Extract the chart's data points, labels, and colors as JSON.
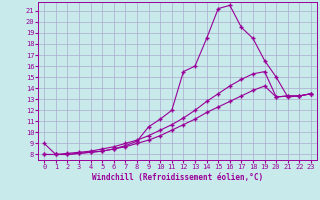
{
  "xlabel": "Windchill (Refroidissement éolien,°C)",
  "bg_color": "#c8eaea",
  "grid_color": "#aaaacc",
  "line_color": "#990099",
  "xlim": [
    -0.5,
    23.5
  ],
  "ylim": [
    7.5,
    21.8
  ],
  "xticks": [
    0,
    1,
    2,
    3,
    4,
    5,
    6,
    7,
    8,
    9,
    10,
    11,
    12,
    13,
    14,
    15,
    16,
    17,
    18,
    19,
    20,
    21,
    22,
    23
  ],
  "yticks": [
    8,
    9,
    10,
    11,
    12,
    13,
    14,
    15,
    16,
    17,
    18,
    19,
    20,
    21
  ],
  "line1_x": [
    0,
    1,
    2,
    3,
    4,
    5,
    6,
    7,
    8,
    9,
    10,
    11,
    12,
    13,
    14,
    15,
    16,
    17,
    18,
    19,
    20,
    21,
    22,
    23
  ],
  "line1_y": [
    9.0,
    8.0,
    8.0,
    8.1,
    8.2,
    8.3,
    8.5,
    8.8,
    9.2,
    10.5,
    11.2,
    12.0,
    15.5,
    16.0,
    18.5,
    21.2,
    21.5,
    19.5,
    18.5,
    16.5,
    15.0,
    13.2,
    13.3,
    13.5
  ],
  "line2_x": [
    0,
    1,
    2,
    3,
    4,
    5,
    6,
    7,
    8,
    9,
    10,
    11,
    12,
    13,
    14,
    15,
    16,
    17,
    18,
    19,
    20,
    21,
    22,
    23
  ],
  "line2_y": [
    8.0,
    8.0,
    8.1,
    8.2,
    8.3,
    8.5,
    8.7,
    9.0,
    9.3,
    9.7,
    10.2,
    10.7,
    11.3,
    12.0,
    12.8,
    13.5,
    14.2,
    14.8,
    15.3,
    15.5,
    13.2,
    13.3,
    13.3,
    13.5
  ],
  "line3_x": [
    0,
    1,
    2,
    3,
    4,
    5,
    6,
    7,
    8,
    9,
    10,
    11,
    12,
    13,
    14,
    15,
    16,
    17,
    18,
    19,
    20,
    21,
    22,
    23
  ],
  "line3_y": [
    8.0,
    8.0,
    8.0,
    8.1,
    8.2,
    8.3,
    8.5,
    8.7,
    9.0,
    9.3,
    9.7,
    10.2,
    10.7,
    11.2,
    11.8,
    12.3,
    12.8,
    13.3,
    13.8,
    14.2,
    13.2,
    13.3,
    13.3,
    13.5
  ]
}
